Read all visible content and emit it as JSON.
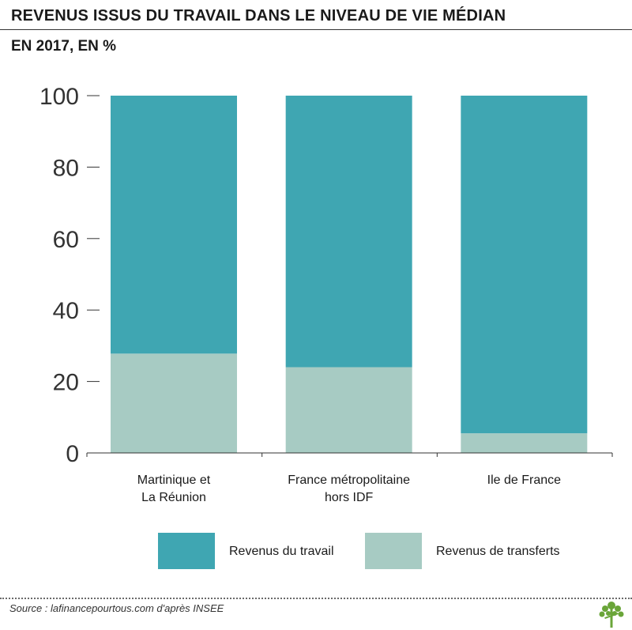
{
  "header": {
    "title": "REVENUS ISSUS DU TRAVAIL DANS LE NIVEAU DE VIE MÉDIAN",
    "subtitle": "EN 2017, EN %"
  },
  "footer": {
    "source": "Source : lafinancepourtous.com d'après INSEE",
    "logo_icon": "tree-logo-icon"
  },
  "colors": {
    "travail": "#3fa6b2",
    "transferts": "#a7cbc3",
    "axis": "#333333"
  },
  "chart_data": {
    "type": "bar",
    "stacked": true,
    "categories": [
      [
        "Martinique et",
        "La Réunion"
      ],
      [
        "France métropolitaine",
        "hors IDF"
      ],
      [
        "Ile de France"
      ]
    ],
    "series": [
      {
        "name": "Revenus de transferts",
        "values": [
          27.8,
          24.0,
          5.5
        ]
      },
      {
        "name": "Revenus du travail",
        "values": [
          72.2,
          76.0,
          94.5
        ]
      }
    ],
    "ylim": [
      0,
      100
    ],
    "yticks": [
      0,
      20,
      40,
      60,
      80,
      100
    ],
    "xlabel": "",
    "ylabel": "",
    "grid": false,
    "legend_order": [
      "Revenus du travail",
      "Revenus de transferts"
    ],
    "legend_position": "bottom"
  }
}
